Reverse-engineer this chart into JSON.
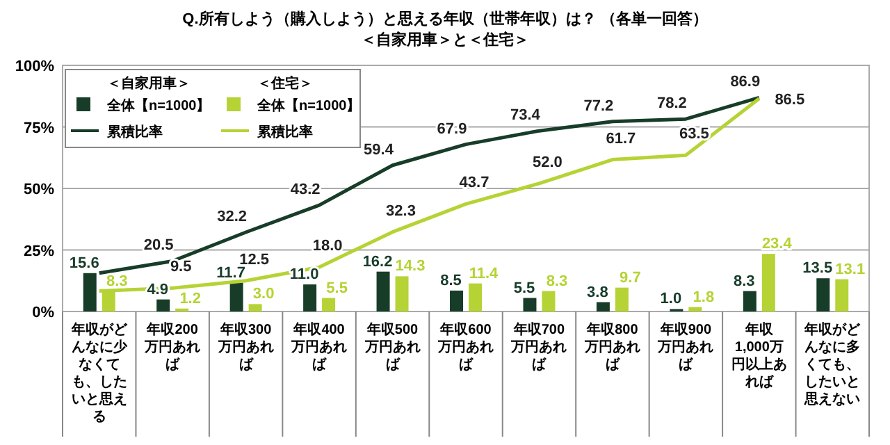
{
  "chart_data": {
    "type": "bar",
    "title": "Q.所有しよう（購入しよう）と思える年収（世帯年収）は？ （各単一回答）",
    "subtitle": "＜自家用車＞と＜住宅＞",
    "categories": [
      "年収がどんなに少なくても、したいと思える",
      "年収200万円あれば",
      "年収300万円あれば",
      "年収400万円あれば",
      "年収500万円あれば",
      "年収600万円あれば",
      "年収700万円あれば",
      "年収800万円あれば",
      "年収900万円あれば",
      "年収1,000万円以上あれば",
      "年収がどんなに多くても、したいと思えない"
    ],
    "series": [
      {
        "type": "bar",
        "name": "全体【n=1000】",
        "color": "#173d29",
        "values": [
          15.6,
          4.9,
          11.7,
          11.0,
          16.2,
          8.5,
          5.5,
          3.8,
          1.0,
          8.3,
          13.5
        ],
        "value_labels": [
          "15.6",
          "4.9",
          "11.7",
          "11.0",
          "16.2",
          "8.5",
          "5.5",
          "3.8",
          "1.0",
          "8.3",
          "13.5"
        ]
      },
      {
        "type": "bar",
        "name": "全体【n=1000】",
        "color": "#b5d334",
        "values": [
          8.3,
          1.2,
          3.0,
          5.5,
          14.3,
          11.4,
          8.3,
          9.7,
          1.8,
          23.4,
          13.1
        ],
        "value_labels": [
          "8.3",
          "1.2",
          "3.0",
          "5.5",
          "14.3",
          "11.4",
          "8.3",
          "9.7",
          "1.8",
          "23.4",
          "13.1"
        ]
      },
      {
        "type": "line",
        "name": "累積比率",
        "color": "#173d29",
        "values": [
          15.6,
          20.5,
          32.2,
          43.2,
          59.4,
          67.9,
          73.4,
          77.2,
          78.2,
          86.9,
          null
        ],
        "value_labels": [
          null,
          "20.5",
          "32.2",
          "43.2",
          "59.4",
          "67.9",
          "73.4",
          "77.2",
          "78.2",
          "86.9",
          null
        ]
      },
      {
        "type": "line",
        "name": "累積比率",
        "color": "#b5d334",
        "values": [
          8.3,
          9.5,
          12.5,
          18.0,
          32.3,
          43.7,
          52.0,
          61.7,
          63.5,
          86.5,
          null
        ],
        "value_labels": [
          null,
          "9.5",
          "12.5",
          "18.0",
          "32.3",
          "43.7",
          "52.0",
          "61.7",
          "63.5",
          "86.5",
          null
        ]
      }
    ],
    "annotations": [
      "＜自家用車＞",
      "＜住宅＞"
    ],
    "ylim": [
      0,
      100
    ],
    "yticks": [
      {
        "value": 0,
        "label": "0%"
      },
      {
        "value": 25,
        "label": "25%"
      },
      {
        "value": 50,
        "label": "50%"
      },
      {
        "value": 75,
        "label": "75%"
      },
      {
        "value": 100,
        "label": "100%"
      }
    ],
    "grid": "y",
    "legend": "top left",
    "marker": "none"
  }
}
